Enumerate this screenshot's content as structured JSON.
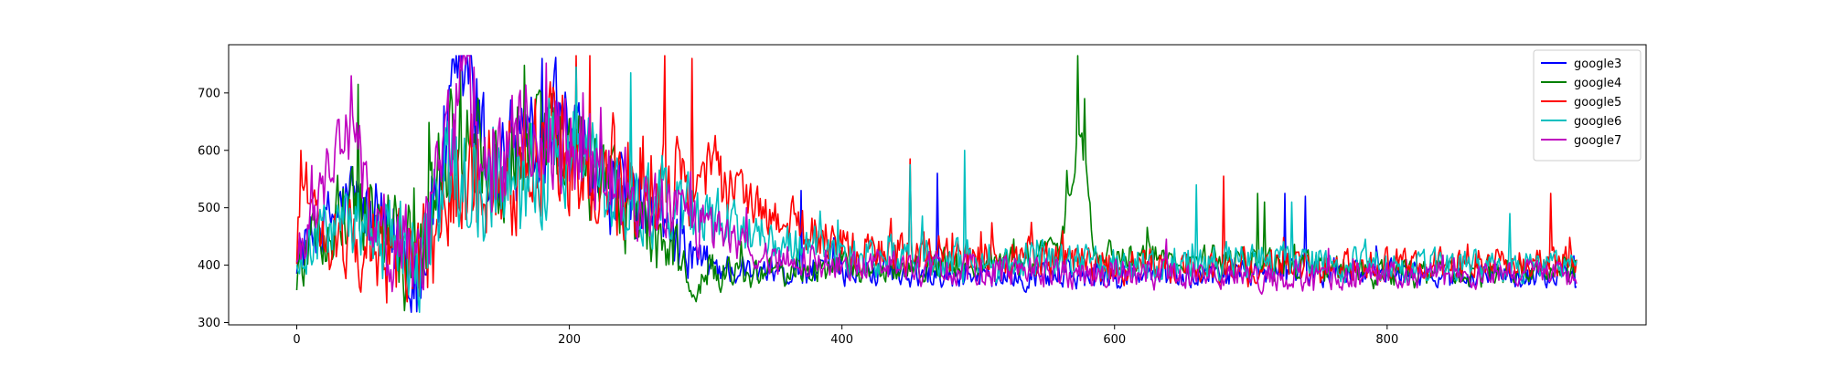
{
  "chart_data": {
    "type": "line",
    "title": "",
    "xlabel": "",
    "ylabel": "",
    "xlim": [
      -50,
      990
    ],
    "ylim": [
      296,
      784
    ],
    "xticks": [
      0,
      200,
      400,
      600,
      800
    ],
    "xtick_labels": [
      "0",
      "200",
      "400",
      "600",
      "800"
    ],
    "yticks": [
      300,
      400,
      500,
      600,
      700
    ],
    "ytick_labels": [
      "300",
      "400",
      "500",
      "600",
      "700"
    ],
    "grid": false,
    "legend_position": "top-right",
    "n_points": 940,
    "series": [
      {
        "name": "google3",
        "color": "#0000ff",
        "profile": [
          [
            0,
            420
          ],
          [
            40,
            520
          ],
          [
            60,
            460
          ],
          [
            90,
            390
          ],
          [
            110,
            600
          ],
          [
            125,
            755
          ],
          [
            140,
            560
          ],
          [
            160,
            600
          ],
          [
            190,
            660
          ],
          [
            220,
            540
          ],
          [
            260,
            470
          ],
          [
            300,
            400
          ],
          [
            340,
            385
          ],
          [
            400,
            390
          ],
          [
            500,
            385
          ],
          [
            600,
            380
          ],
          [
            700,
            385
          ],
          [
            800,
            390
          ],
          [
            939,
            375
          ]
        ],
        "amplitude": [
          [
            0,
            40
          ],
          [
            110,
            110
          ],
          [
            250,
            70
          ],
          [
            320,
            25
          ],
          [
            939,
            22
          ]
        ],
        "spikes": [
          [
            125,
            765
          ],
          [
            180,
            760
          ],
          [
            370,
            530
          ],
          [
            470,
            560
          ],
          [
            725,
            525
          ],
          [
            740,
            520
          ]
        ]
      },
      {
        "name": "google4",
        "color": "#008000",
        "profile": [
          [
            0,
            390
          ],
          [
            40,
            520
          ],
          [
            60,
            470
          ],
          [
            90,
            400
          ],
          [
            115,
            660
          ],
          [
            140,
            560
          ],
          [
            170,
            600
          ],
          [
            200,
            600
          ],
          [
            250,
            470
          ],
          [
            290,
            390
          ],
          [
            340,
            380
          ],
          [
            400,
            395
          ],
          [
            500,
            400
          ],
          [
            560,
            420
          ],
          [
            575,
            640
          ],
          [
            585,
            420
          ],
          [
            700,
            405
          ],
          [
            800,
            385
          ],
          [
            939,
            390
          ]
        ],
        "amplitude": [
          [
            0,
            45
          ],
          [
            110,
            110
          ],
          [
            250,
            70
          ],
          [
            320,
            25
          ],
          [
            939,
            25
          ]
        ],
        "spikes": [
          [
            45,
            715
          ],
          [
            120,
            740
          ],
          [
            565,
            565
          ],
          [
            573,
            765
          ],
          [
            578,
            690
          ],
          [
            710,
            510
          ],
          [
            705,
            525
          ]
        ]
      },
      {
        "name": "google5",
        "color": "#ff0000",
        "profile": [
          [
            0,
            430
          ],
          [
            5,
            560
          ],
          [
            20,
            440
          ],
          [
            60,
            430
          ],
          [
            90,
            380
          ],
          [
            120,
            560
          ],
          [
            140,
            540
          ],
          [
            180,
            600
          ],
          [
            220,
            560
          ],
          [
            260,
            540
          ],
          [
            300,
            540
          ],
          [
            340,
            500
          ],
          [
            380,
            450
          ],
          [
            420,
            420
          ],
          [
            460,
            420
          ],
          [
            520,
            410
          ],
          [
            600,
            400
          ],
          [
            700,
            395
          ],
          [
            800,
            400
          ],
          [
            939,
            410
          ]
        ],
        "amplitude": [
          [
            0,
            45
          ],
          [
            110,
            110
          ],
          [
            250,
            100
          ],
          [
            340,
            40
          ],
          [
            939,
            25
          ]
        ],
        "spikes": [
          [
            3,
            600
          ],
          [
            205,
            765
          ],
          [
            215,
            765
          ],
          [
            270,
            765
          ],
          [
            290,
            760
          ],
          [
            450,
            585
          ],
          [
            680,
            555
          ],
          [
            920,
            525
          ]
        ]
      },
      {
        "name": "google6",
        "color": "#00bfbf",
        "profile": [
          [
            0,
            420
          ],
          [
            40,
            480
          ],
          [
            60,
            450
          ],
          [
            90,
            400
          ],
          [
            110,
            560
          ],
          [
            140,
            540
          ],
          [
            170,
            560
          ],
          [
            200,
            600
          ],
          [
            240,
            520
          ],
          [
            280,
            500
          ],
          [
            320,
            470
          ],
          [
            360,
            440
          ],
          [
            400,
            420
          ],
          [
            500,
            410
          ],
          [
            600,
            400
          ],
          [
            700,
            410
          ],
          [
            800,
            400
          ],
          [
            939,
            395
          ]
        ],
        "amplitude": [
          [
            0,
            40
          ],
          [
            110,
            100
          ],
          [
            250,
            80
          ],
          [
            340,
            40
          ],
          [
            939,
            25
          ]
        ],
        "spikes": [
          [
            205,
            745
          ],
          [
            245,
            735
          ],
          [
            450,
            575
          ],
          [
            490,
            600
          ],
          [
            660,
            540
          ],
          [
            730,
            510
          ],
          [
            890,
            490
          ]
        ]
      },
      {
        "name": "google7",
        "color": "#bf00bf",
        "profile": [
          [
            0,
            420
          ],
          [
            30,
            600
          ],
          [
            40,
            640
          ],
          [
            55,
            480
          ],
          [
            90,
            390
          ],
          [
            110,
            600
          ],
          [
            125,
            740
          ],
          [
            140,
            580
          ],
          [
            180,
            640
          ],
          [
            220,
            560
          ],
          [
            260,
            500
          ],
          [
            300,
            460
          ],
          [
            340,
            420
          ],
          [
            400,
            400
          ],
          [
            500,
            390
          ],
          [
            600,
            385
          ],
          [
            700,
            380
          ],
          [
            800,
            380
          ],
          [
            939,
            385
          ]
        ],
        "amplitude": [
          [
            0,
            40
          ],
          [
            110,
            110
          ],
          [
            250,
            75
          ],
          [
            320,
            30
          ],
          [
            939,
            22
          ]
        ],
        "spikes": [
          [
            40,
            730
          ],
          [
            130,
            745
          ],
          [
            210,
            700
          ],
          [
            330,
            500
          ]
        ]
      }
    ]
  }
}
